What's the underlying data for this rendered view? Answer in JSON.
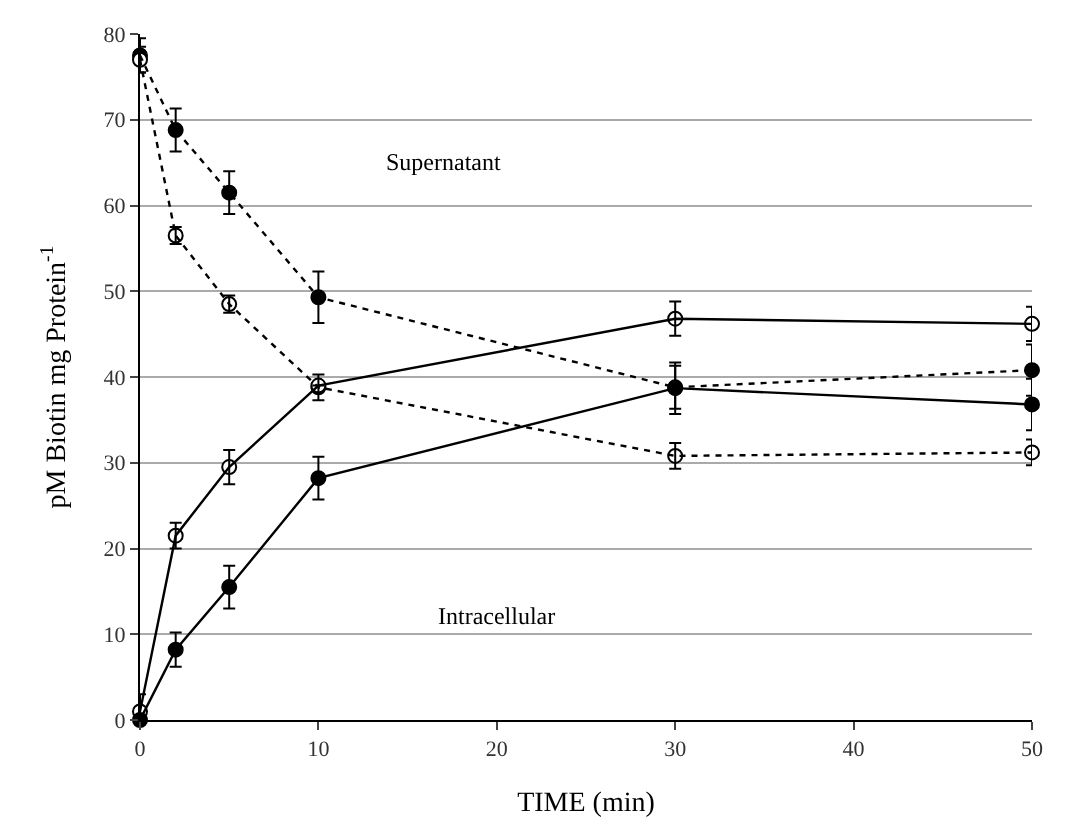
{
  "chart_data": {
    "type": "line",
    "xlabel": "TIME (min)",
    "ylabel": "pM Biotin mg Protein$^{-1}$",
    "x": [
      0,
      2,
      5,
      10,
      30,
      50
    ],
    "xlim": [
      0,
      50
    ],
    "xticks": [
      0,
      10,
      20,
      30,
      40,
      50
    ],
    "ylim": [
      0,
      80
    ],
    "yticks": [
      0,
      10,
      20,
      30,
      40,
      50,
      60,
      70,
      80
    ],
    "grid": "y",
    "marker": "circle",
    "series": [
      {
        "color": "#000000",
        "line_style": "dotted",
        "values": [
          77.5,
          68.8,
          61.5,
          49.3,
          38.8,
          40.8
        ],
        "errors": [
          2,
          2.5,
          2.5,
          3,
          2.5,
          3
        ]
      },
      {
        "color": "#ffffff",
        "line_style": "dotted",
        "values": [
          77,
          56.5,
          48.5,
          38.8,
          30.8,
          31.2
        ],
        "errors": [
          1.5,
          1,
          1,
          1.5,
          1.5,
          1.5
        ]
      },
      {
        "color": "#ffffff",
        "line_style": "solid",
        "values": [
          1,
          21.5,
          29.5,
          39,
          46.8,
          46.2
        ],
        "errors": [
          2,
          1.5,
          2,
          null,
          2,
          2
        ]
      },
      {
        "color": "#000000",
        "line_style": "solid",
        "values": [
          0,
          8.2,
          15.5,
          28.2,
          38.7,
          36.8
        ],
        "errors": [
          null,
          2,
          2.5,
          2.5,
          3,
          3
        ]
      }
    ],
    "annotations": [
      "Supernatant",
      "Intracellular"
    ]
  }
}
